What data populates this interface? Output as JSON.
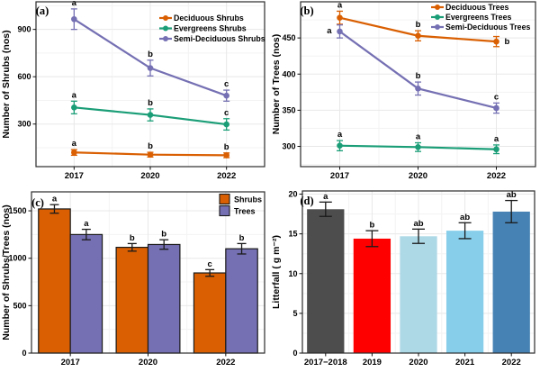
{
  "figure": {
    "background": "#ffffff",
    "panel_border_color": "#2b2b2b",
    "grid_major_color": "#e8e8e8",
    "grid_minor_color": "#f3f3f3",
    "text_color": "#000000",
    "error_bar_color": "#1a1a1a"
  },
  "chart_data": [
    {
      "id": "a",
      "panel_label": "(a)",
      "type": "line",
      "xlabel": "",
      "ylabel": "Number of Shrubs (nos)",
      "categories": [
        "2017",
        "2020",
        "2022"
      ],
      "ylim": [
        30,
        1075
      ],
      "yticks": [
        300,
        600,
        900
      ],
      "grid": true,
      "legend_position": "top-right-inside",
      "series": [
        {
          "name": "Deciduous Shrubs",
          "color": "#D95F02",
          "values": [
            120,
            106,
            102
          ],
          "errors": [
            18,
            15,
            15
          ],
          "letters": [
            "a",
            "b",
            "b"
          ],
          "letter_side": [
            "above",
            "above",
            "above"
          ]
        },
        {
          "name": "Evergreens Shrubs",
          "color": "#1B9E77",
          "values": [
            405,
            358,
            298
          ],
          "errors": [
            40,
            38,
            36
          ],
          "letters": [
            "a",
            "b",
            "c"
          ],
          "letter_side": [
            "above",
            "above",
            "above"
          ]
        },
        {
          "name": "Semi-Deciduous Shrubs",
          "color": "#7570B3",
          "values": [
            965,
            655,
            480
          ],
          "errors": [
            65,
            50,
            35
          ],
          "letters": [
            "a",
            "b",
            "c"
          ],
          "letter_side": [
            "above",
            "above",
            "above"
          ]
        }
      ]
    },
    {
      "id": "b",
      "panel_label": "(b)",
      "type": "line",
      "xlabel": "",
      "ylabel": "Number of Trees (nos)",
      "categories": [
        "2017",
        "2020",
        "2022"
      ],
      "ylim": [
        272,
        500
      ],
      "yticks": [
        300,
        350,
        400,
        450
      ],
      "grid": true,
      "legend_position": "top-right-inside",
      "series": [
        {
          "name": "Deciduous Trees",
          "color": "#D95F02",
          "values": [
            478,
            453,
            445
          ],
          "errors": [
            9,
            7,
            7
          ],
          "letters": [
            "a",
            "b",
            "b"
          ],
          "letter_side": [
            "above",
            "above",
            "right"
          ]
        },
        {
          "name": "Evergreens Trees",
          "color": "#1B9E77",
          "values": [
            301,
            299,
            296
          ],
          "errors": [
            7,
            6,
            6
          ],
          "letters": [
            "a",
            "a",
            "a"
          ],
          "letter_side": [
            "above",
            "above",
            "above"
          ]
        },
        {
          "name": "Semi-Deciduous Trees",
          "color": "#7570B3",
          "values": [
            459,
            380,
            353
          ],
          "errors": [
            9,
            9,
            7
          ],
          "letters": [
            "a",
            "b",
            "c"
          ],
          "letter_side": [
            "left",
            "above",
            "above"
          ]
        }
      ]
    },
    {
      "id": "c",
      "panel_label": "(c)",
      "type": "bar",
      "xlabel": "",
      "ylabel": "Number of Shrubs/Trees (nos)",
      "categories": [
        "2017",
        "2020",
        "2022"
      ],
      "ylim": [
        0,
        1700
      ],
      "yticks": [
        0,
        500,
        1000,
        1500
      ],
      "grid": true,
      "bar_outline": "#1a1a1a",
      "legend_position": "top-right-inside",
      "series": [
        {
          "name": "Shrubs",
          "color": "#D95F02",
          "values": [
            1520,
            1115,
            845
          ],
          "errors": [
            45,
            40,
            35
          ],
          "letters": [
            "a",
            "b",
            "c"
          ]
        },
        {
          "name": "Trees",
          "color": "#7570B3",
          "values": [
            1250,
            1145,
            1100
          ],
          "errors": [
            55,
            50,
            55
          ],
          "letters": [
            "a",
            "b",
            "b"
          ]
        }
      ]
    },
    {
      "id": "d",
      "panel_label": "(d)",
      "type": "bar",
      "xlabel": "",
      "ylabel": "Litterfall ( g m⁻²)",
      "categories": [
        "2017−2018",
        "2019",
        "2020",
        "2021",
        "2022"
      ],
      "ylim": [
        0,
        20.4
      ],
      "yticks": [
        0,
        5,
        10,
        15,
        20
      ],
      "grid": true,
      "legend_position": "none",
      "series": [
        {
          "name": "Litterfall",
          "colors": [
            "#4D4D4D",
            "#FF0000",
            "#ADD8E6",
            "#87CEEB",
            "#4682B4"
          ],
          "values": [
            18.1,
            14.4,
            14.7,
            15.4,
            17.8
          ],
          "errors": [
            0.9,
            1.0,
            0.9,
            1.0,
            1.4
          ],
          "letters": [
            "a",
            "b",
            "ab",
            "ab",
            "ab"
          ]
        }
      ]
    }
  ]
}
